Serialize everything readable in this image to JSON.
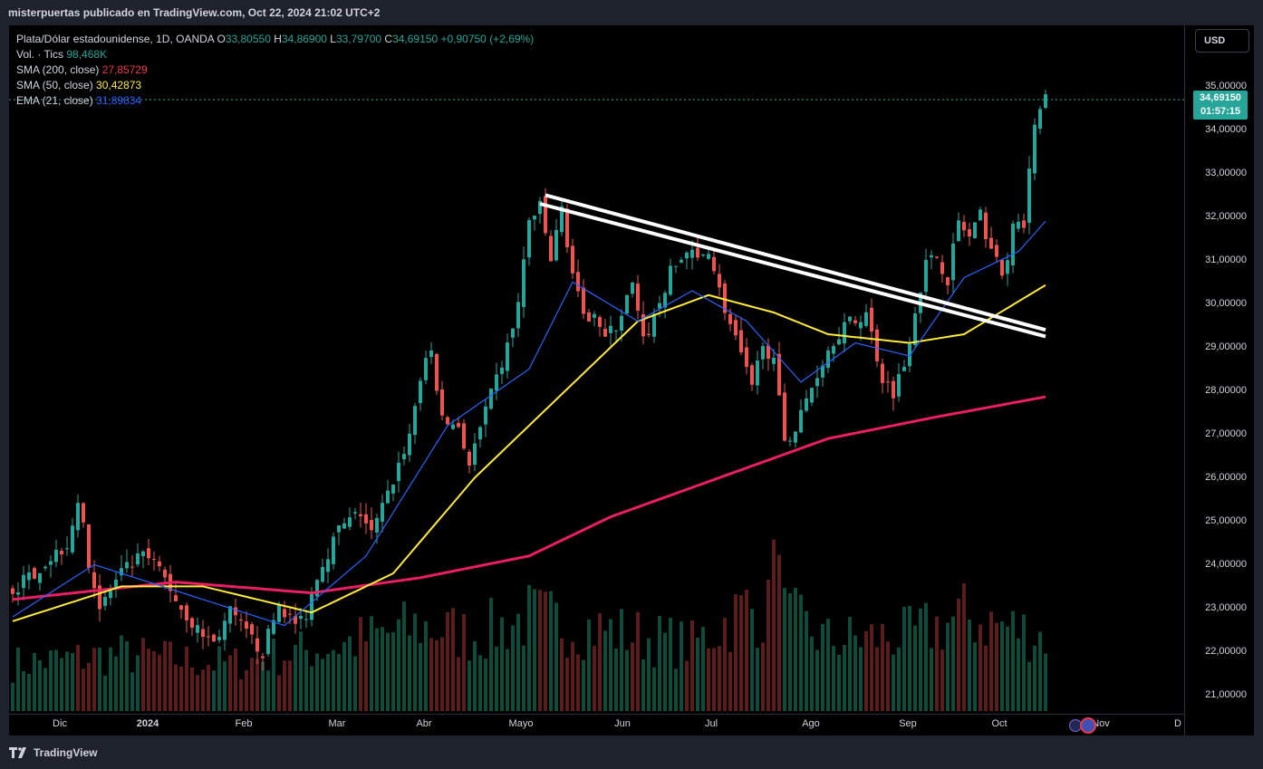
{
  "header": {
    "published_text": "misterpuertas publicado en TradingView.com, Oct 22, 2024 21:02 UTC+2"
  },
  "legend": {
    "symbol": "Plata/Dólar estadounidense, 1D, OANDA",
    "o_label": "O",
    "o_value": "33,80550",
    "h_label": "H",
    "h_value": "34,86900",
    "l_label": "L",
    "l_value": "33,79700",
    "c_label": "C",
    "c_value": "34,69150",
    "change": "+0,90750 (+2,69%)",
    "volume_label": "Vol. · Tics",
    "volume_value": "98,468K",
    "sma200_label": "SMA (200, close)",
    "sma200_value": "27,85729",
    "sma50_label": "SMA (50, close)",
    "sma50_value": "30,42873",
    "ema21_label": "EMA (21, close)",
    "ema21_value": "31,89834"
  },
  "currency_button": "USD",
  "price_tag": {
    "price": "34,69150",
    "countdown": "01:57:15"
  },
  "colors": {
    "up": "#26a69a",
    "down": "#ef5350",
    "sma200": "#e91e63",
    "sma50": "#ffeb3b",
    "ema21": "#2962ff",
    "trendline": "#ffffff"
  },
  "footer": {
    "brand": "TradingView"
  },
  "chart_data": {
    "type": "candlestick",
    "y_ticks": [
      "35,00000",
      "34,00000",
      "33,00000",
      "32,00000",
      "31,00000",
      "30,00000",
      "29,00000",
      "28,00000",
      "27,00000",
      "26,00000",
      "25,00000",
      "24,00000",
      "23,00000",
      "22,00000",
      "21,00000"
    ],
    "x_ticks": [
      "Dic",
      "2024",
      "Feb",
      "Mar",
      "Abr",
      "Mayo",
      "Jun",
      "Jul",
      "Ago",
      "Sep",
      "Oct",
      "Nov",
      "D"
    ],
    "ylim": [
      20.6,
      35.6
    ],
    "price_keyframes": [
      [
        0,
        23.4
      ],
      [
        10,
        24.5
      ],
      [
        12,
        25.5
      ],
      [
        14,
        24.1
      ],
      [
        16,
        23.0
      ],
      [
        20,
        23.8
      ],
      [
        24,
        24.2
      ],
      [
        27,
        23.9
      ],
      [
        31,
        23.0
      ],
      [
        34,
        22.5
      ],
      [
        37,
        22.2
      ],
      [
        40,
        22.9
      ],
      [
        43,
        22.4
      ],
      [
        46,
        22.0
      ],
      [
        49,
        23.1
      ],
      [
        52,
        22.6
      ],
      [
        54,
        22.9
      ],
      [
        56,
        23.8
      ],
      [
        60,
        24.8
      ],
      [
        64,
        25.2
      ],
      [
        66,
        24.7
      ],
      [
        69,
        25.6
      ],
      [
        73,
        27.0
      ],
      [
        75,
        28.3
      ],
      [
        77,
        28.9
      ],
      [
        79,
        27.3
      ],
      [
        82,
        27.2
      ],
      [
        84,
        26.3
      ],
      [
        87,
        27.5
      ],
      [
        91,
        29.0
      ],
      [
        93,
        30.0
      ],
      [
        95,
        31.9
      ],
      [
        97,
        32.2
      ],
      [
        99,
        31.0
      ],
      [
        101,
        32.2
      ],
      [
        103,
        30.7
      ],
      [
        105,
        29.6
      ],
      [
        107,
        29.9
      ],
      [
        109,
        29.2
      ],
      [
        111,
        29.5
      ],
      [
        114,
        30.4
      ],
      [
        116,
        29.1
      ],
      [
        118,
        29.7
      ],
      [
        121,
        30.7
      ],
      [
        124,
        31.2
      ],
      [
        126,
        31.0
      ],
      [
        128,
        31.3
      ],
      [
        130,
        30.3
      ],
      [
        132,
        29.5
      ],
      [
        134,
        28.8
      ],
      [
        136,
        28.0
      ],
      [
        138,
        29.2
      ],
      [
        140,
        28.6
      ],
      [
        142,
        26.9
      ],
      [
        144,
        27.1
      ],
      [
        146,
        27.8
      ],
      [
        149,
        28.7
      ],
      [
        151,
        29.2
      ],
      [
        153,
        29.5
      ],
      [
        155,
        29.6
      ],
      [
        157,
        29.8
      ],
      [
        160,
        28.3
      ],
      [
        162,
        28.0
      ],
      [
        164,
        28.6
      ],
      [
        166,
        29.9
      ],
      [
        168,
        30.9
      ],
      [
        170,
        31.1
      ],
      [
        172,
        30.6
      ],
      [
        174,
        31.9
      ],
      [
        176,
        31.5
      ],
      [
        178,
        32.0
      ],
      [
        180,
        31.3
      ],
      [
        182,
        30.6
      ],
      [
        184,
        31.7
      ],
      [
        186,
        31.8
      ],
      [
        188,
        34.2
      ],
      [
        190,
        34.7
      ]
    ],
    "volume_keyframes": [
      [
        0,
        0.1
      ],
      [
        20,
        0.12
      ],
      [
        40,
        0.1
      ],
      [
        60,
        0.14
      ],
      [
        75,
        0.18
      ],
      [
        85,
        0.16
      ],
      [
        95,
        0.2
      ],
      [
        110,
        0.17
      ],
      [
        125,
        0.14
      ],
      [
        135,
        0.22
      ],
      [
        142,
        0.2
      ],
      [
        150,
        0.15
      ],
      [
        165,
        0.16
      ],
      [
        175,
        0.2
      ],
      [
        190,
        0.16
      ]
    ],
    "volume_spike_indices": [
      140,
      141
    ],
    "sma200_keyframes": [
      [
        0,
        23.2
      ],
      [
        30,
        23.6
      ],
      [
        55,
        23.35
      ],
      [
        75,
        23.7
      ],
      [
        95,
        24.2
      ],
      [
        110,
        25.1
      ],
      [
        130,
        26.0
      ],
      [
        150,
        26.9
      ],
      [
        170,
        27.4
      ],
      [
        190,
        27.86
      ]
    ],
    "sma50_keyframes": [
      [
        0,
        22.7
      ],
      [
        20,
        23.5
      ],
      [
        35,
        23.5
      ],
      [
        55,
        22.9
      ],
      [
        70,
        23.8
      ],
      [
        85,
        26.0
      ],
      [
        100,
        27.8
      ],
      [
        115,
        29.6
      ],
      [
        128,
        30.2
      ],
      [
        140,
        29.8
      ],
      [
        150,
        29.3
      ],
      [
        165,
        29.1
      ],
      [
        175,
        29.3
      ],
      [
        190,
        30.43
      ]
    ],
    "ema21_keyframes": [
      [
        0,
        22.8
      ],
      [
        15,
        24.0
      ],
      [
        30,
        23.4
      ],
      [
        50,
        22.6
      ],
      [
        65,
        24.2
      ],
      [
        80,
        27.2
      ],
      [
        95,
        28.5
      ],
      [
        103,
        30.5
      ],
      [
        115,
        29.6
      ],
      [
        125,
        30.3
      ],
      [
        135,
        29.6
      ],
      [
        145,
        28.2
      ],
      [
        155,
        29.1
      ],
      [
        165,
        28.8
      ],
      [
        175,
        30.6
      ],
      [
        185,
        31.2
      ],
      [
        190,
        31.9
      ]
    ],
    "trendlines": [
      {
        "from": [
          98,
          32.5
        ],
        "to": [
          190,
          29.4
        ]
      },
      {
        "from": [
          97,
          32.3
        ],
        "to": [
          190,
          29.25
        ]
      }
    ]
  }
}
